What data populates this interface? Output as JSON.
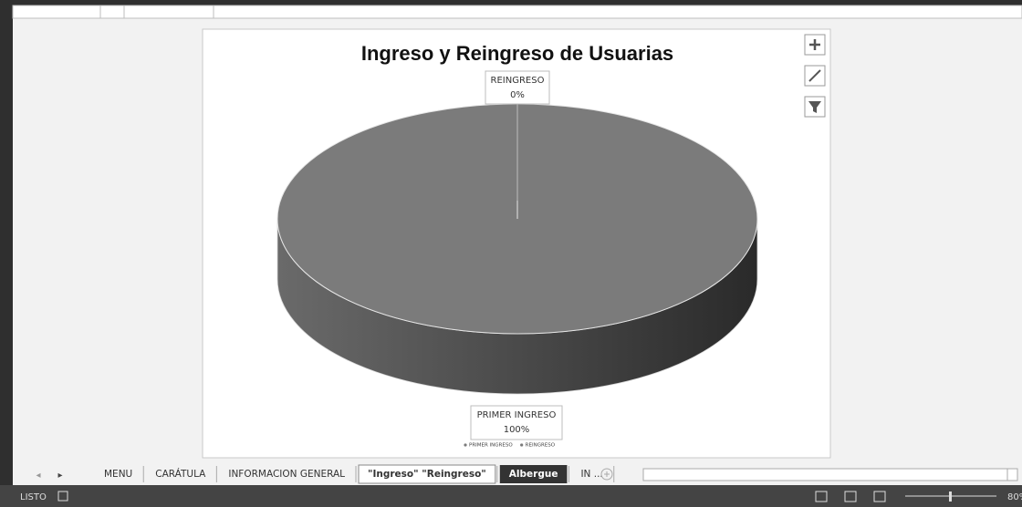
{
  "chart_data": {
    "type": "pie",
    "title": "Ingreso y Reingreso de Usuarias",
    "categories": [
      "PRIMER INGRESO",
      "REINGRESO"
    ],
    "values": [
      100,
      0
    ],
    "value_labels": [
      "100%",
      "0%"
    ],
    "colors": [
      "#7b7b7b",
      "#7b7b7b"
    ],
    "legend": "bottom"
  },
  "ui": {
    "tabs": [
      "MENU",
      "CARÁTULA",
      "INFORMACION GENERAL",
      "\"Ingreso\"  \"Reingreso\"",
      "Albergue",
      "IN ..."
    ],
    "active_tab": 3,
    "status": "LISTO",
    "zoom": "80%"
  }
}
